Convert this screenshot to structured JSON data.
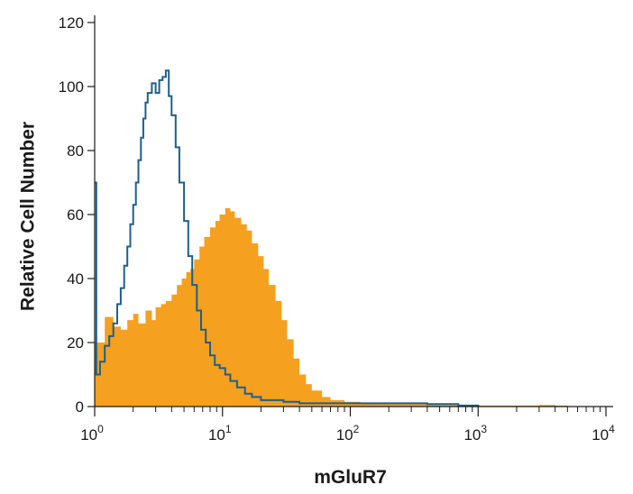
{
  "chart_data": {
    "type": "area",
    "xlabel": "mGluR7",
    "ylabel": "Relative Cell Number",
    "xscale": "log",
    "xlim": [
      1,
      10000
    ],
    "ylim": [
      0,
      120
    ],
    "x_ticks": [
      {
        "base": "10",
        "exp": "0"
      },
      {
        "base": "10",
        "exp": "1"
      },
      {
        "base": "10",
        "exp": "2"
      },
      {
        "base": "10",
        "exp": "3"
      },
      {
        "base": "10",
        "exp": "4"
      }
    ],
    "y_ticks": [
      "0",
      "20",
      "40",
      "60",
      "80",
      "100",
      "120"
    ],
    "grid": false,
    "series": [
      {
        "style": "filled",
        "color": "#f5a01f",
        "points": [
          [
            1.0,
            20
          ],
          [
            1.2,
            28
          ],
          [
            1.4,
            25
          ],
          [
            1.6,
            24
          ],
          [
            1.8,
            27
          ],
          [
            2.0,
            29
          ],
          [
            2.2,
            26
          ],
          [
            2.5,
            30
          ],
          [
            2.8,
            27
          ],
          [
            3.0,
            31
          ],
          [
            3.3,
            32
          ],
          [
            3.6,
            33
          ],
          [
            4.0,
            35
          ],
          [
            4.4,
            38
          ],
          [
            4.8,
            40
          ],
          [
            5.2,
            42
          ],
          [
            5.6,
            43
          ],
          [
            6.0,
            46
          ],
          [
            6.6,
            50
          ],
          [
            7.2,
            53
          ],
          [
            8.0,
            56
          ],
          [
            8.8,
            58
          ],
          [
            9.5,
            60
          ],
          [
            10.5,
            62
          ],
          [
            11.5,
            61
          ],
          [
            12.5,
            59
          ],
          [
            14.0,
            57
          ],
          [
            15.5,
            55
          ],
          [
            17.0,
            51
          ],
          [
            19.0,
            47
          ],
          [
            21.0,
            43
          ],
          [
            23.0,
            38
          ],
          [
            26.0,
            33
          ],
          [
            29.0,
            27
          ],
          [
            32.0,
            21
          ],
          [
            36.0,
            15
          ],
          [
            40.0,
            10
          ],
          [
            45.0,
            7
          ],
          [
            50.0,
            5
          ],
          [
            60.0,
            3
          ],
          [
            70.0,
            2
          ],
          [
            90.0,
            1.5
          ],
          [
            120.0,
            1
          ],
          [
            200.0,
            0.8
          ],
          [
            300.0,
            0.8
          ],
          [
            500.0,
            0.5
          ],
          [
            1000.0,
            0.3
          ],
          [
            2000.0,
            0.3
          ],
          [
            3000.0,
            0.5
          ],
          [
            4000.0,
            0.3
          ],
          [
            5000.0,
            0
          ]
        ]
      },
      {
        "style": "line",
        "color": "#1f5f8b",
        "points": [
          [
            1.0,
            70
          ],
          [
            1.03,
            10
          ],
          [
            1.1,
            14
          ],
          [
            1.2,
            19
          ],
          [
            1.3,
            22
          ],
          [
            1.4,
            26
          ],
          [
            1.5,
            32
          ],
          [
            1.6,
            37
          ],
          [
            1.7,
            44
          ],
          [
            1.8,
            50
          ],
          [
            1.9,
            57
          ],
          [
            2.0,
            63
          ],
          [
            2.1,
            70
          ],
          [
            2.2,
            77
          ],
          [
            2.3,
            84
          ],
          [
            2.4,
            90
          ],
          [
            2.5,
            95
          ],
          [
            2.6,
            98
          ],
          [
            2.8,
            101
          ],
          [
            3.0,
            98
          ],
          [
            3.2,
            102
          ],
          [
            3.4,
            103
          ],
          [
            3.6,
            105
          ],
          [
            3.8,
            97
          ],
          [
            4.0,
            91
          ],
          [
            4.3,
            81
          ],
          [
            4.6,
            70
          ],
          [
            5.0,
            58
          ],
          [
            5.4,
            47
          ],
          [
            5.8,
            38
          ],
          [
            6.3,
            30
          ],
          [
            6.8,
            24
          ],
          [
            7.4,
            20
          ],
          [
            8.0,
            16
          ],
          [
            8.7,
            13
          ],
          [
            9.5,
            12
          ],
          [
            10.5,
            10
          ],
          [
            11.5,
            8
          ],
          [
            13.0,
            6
          ],
          [
            15.0,
            4
          ],
          [
            17.0,
            3
          ],
          [
            20.0,
            2
          ],
          [
            25.0,
            2
          ],
          [
            30.0,
            1.5
          ],
          [
            40.0,
            1
          ],
          [
            60.0,
            1
          ],
          [
            100.0,
            1
          ],
          [
            200.0,
            1
          ],
          [
            400.0,
            0.8
          ],
          [
            700.0,
            0.3
          ],
          [
            1000.0,
            0
          ]
        ]
      }
    ]
  }
}
